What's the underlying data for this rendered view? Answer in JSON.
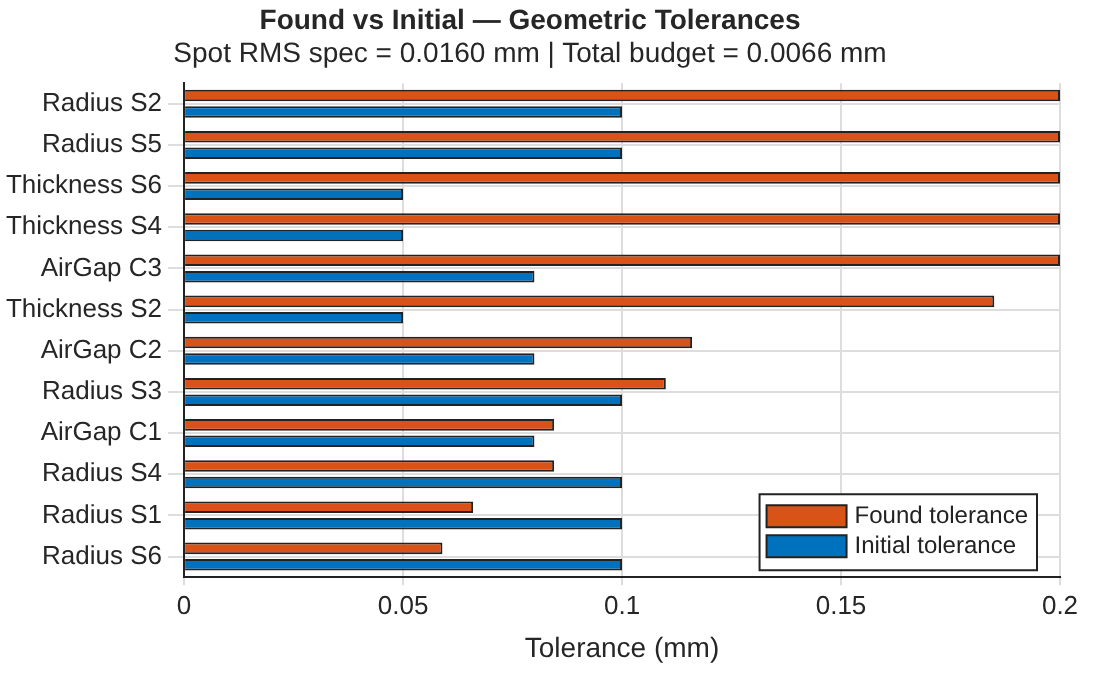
{
  "chart_data": {
    "type": "bar",
    "orientation": "horizontal",
    "title": "Found vs Initial — Geometric Tolerances",
    "subtitle": "Spot RMS spec = 0.0160 mm | Total budget = 0.0066 mm",
    "xlabel": "Tolerance (mm)",
    "categories": [
      "Radius S2",
      "Radius S5",
      "Thickness S6",
      "Thickness S4",
      "AirGap C3",
      "Thickness S2",
      "AirGap C2",
      "Radius S3",
      "AirGap C1",
      "Radius S4",
      "Radius S1",
      "Radius S6"
    ],
    "series": [
      {
        "name": "Found tolerance",
        "color": "#d95319",
        "values": [
          0.2,
          0.2,
          0.2,
          0.2,
          0.2,
          0.185,
          0.116,
          0.11,
          0.0845,
          0.0845,
          0.066,
          0.059
        ]
      },
      {
        "name": "Initial tolerance",
        "color": "#0072bd",
        "values": [
          0.1,
          0.1,
          0.05,
          0.05,
          0.08,
          0.05,
          0.08,
          0.1,
          0.08,
          0.1,
          0.1,
          0.1
        ]
      }
    ],
    "xlim": [
      0,
      0.2
    ],
    "xticks": [
      0,
      0.05,
      0.1,
      0.15,
      0.2
    ],
    "grid": true,
    "legend": "bottom right"
  }
}
